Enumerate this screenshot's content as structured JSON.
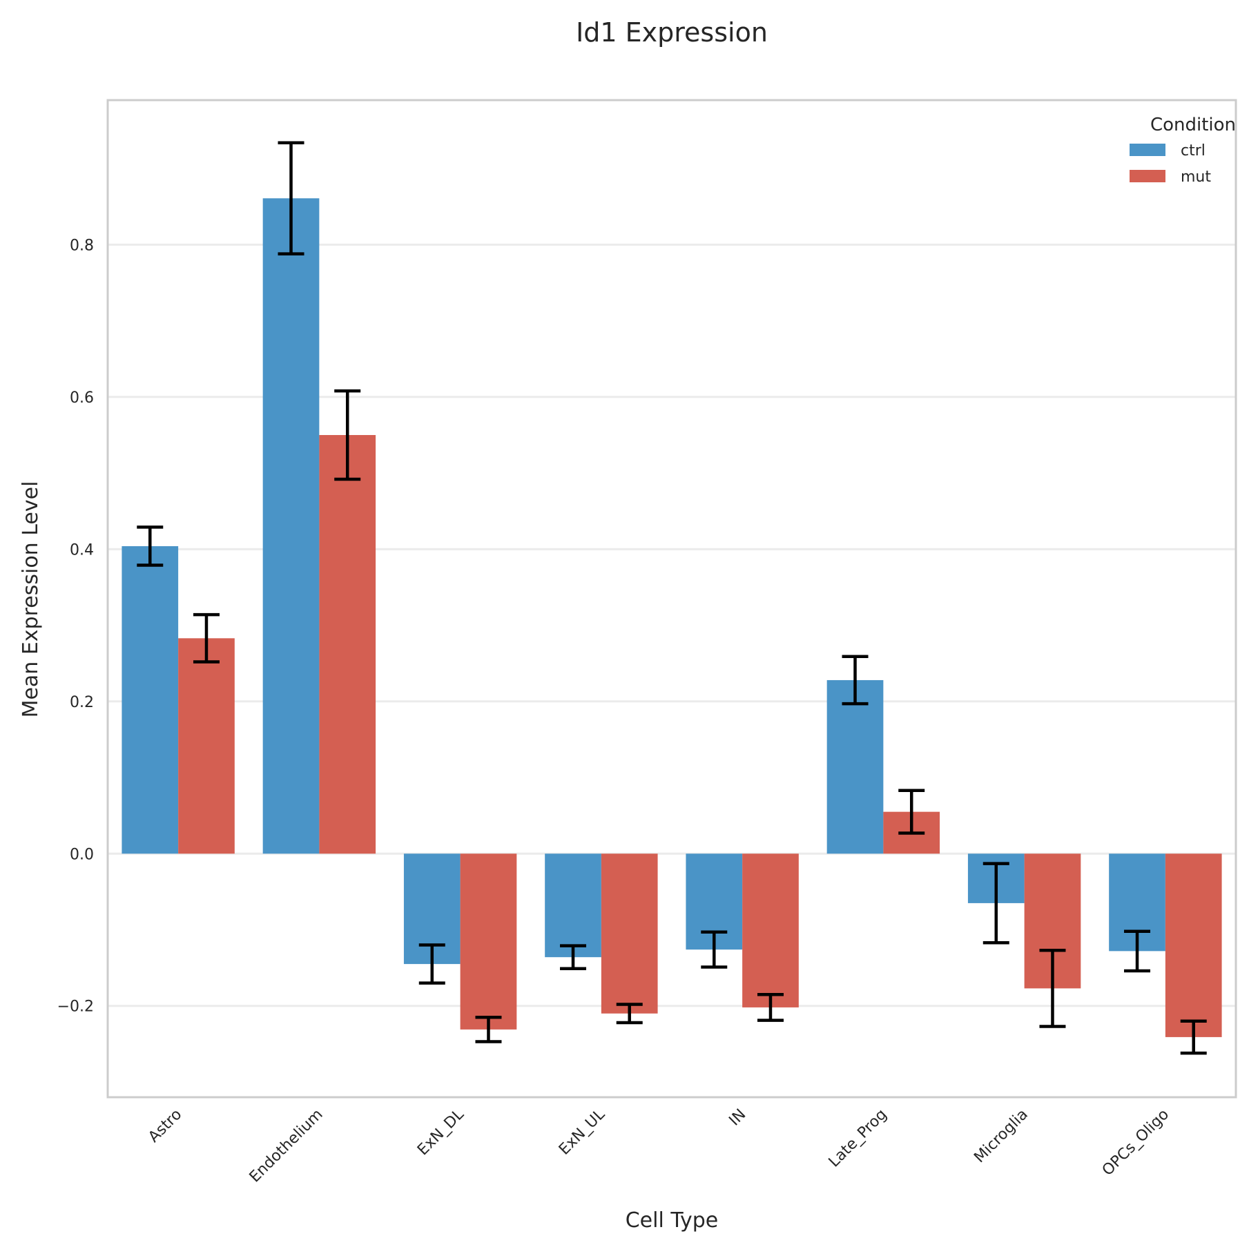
{
  "chart_data": {
    "type": "bar",
    "title": "Id1 Expression",
    "xlabel": "Cell Type",
    "ylabel": "Mean Expression Level",
    "categories": [
      "Astro",
      "Endothelium",
      "ExN_DL",
      "ExN_UL",
      "IN",
      "Late_Prog",
      "Microglia",
      "OPCs_Oligo"
    ],
    "series": [
      {
        "name": "ctrl",
        "color": "#4a94c7",
        "values": [
          0.404,
          0.861,
          -0.145,
          -0.136,
          -0.126,
          0.228,
          -0.065,
          -0.128
        ],
        "error": [
          0.025,
          0.073,
          0.025,
          0.015,
          0.023,
          0.031,
          0.052,
          0.026
        ]
      },
      {
        "name": "mut",
        "color": "#d45f52",
        "values": [
          0.283,
          0.55,
          -0.231,
          -0.21,
          -0.202,
          0.055,
          -0.177,
          -0.241
        ],
        "error": [
          0.031,
          0.058,
          0.016,
          0.012,
          0.017,
          0.028,
          0.05,
          0.021
        ]
      }
    ],
    "ylim": [
      -0.32,
      0.99
    ],
    "yticks": [
      -0.2,
      0.0,
      0.2,
      0.4,
      0.6,
      0.8
    ],
    "ytick_labels": [
      "−0.2",
      "0.0",
      "0.2",
      "0.4",
      "0.6",
      "0.8"
    ],
    "grid": "y",
    "legend": {
      "title": "Condition",
      "placement": "top-right"
    }
  }
}
